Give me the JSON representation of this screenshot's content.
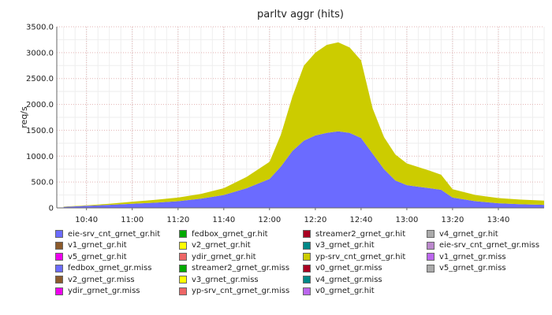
{
  "chart_data": {
    "type": "area",
    "title": "parltv aggr (hits)",
    "xlabel": "",
    "ylabel": "req/s",
    "x_ticks": [
      "10:40",
      "11:00",
      "11:20",
      "11:40",
      "12:00",
      "12:20",
      "12:40",
      "13:00",
      "13:20",
      "13:40"
    ],
    "y_ticks": [
      "0",
      "500.0",
      "1000.0",
      "1500.0",
      "2000.0",
      "2500.0",
      "3000.0",
      "3500.0"
    ],
    "ylim": [
      0,
      3500
    ],
    "xlim": [
      "10:27",
      "14:00"
    ],
    "grid": true,
    "legend_position": "bottom",
    "stacked": true,
    "x": [
      "10:30",
      "10:40",
      "10:50",
      "11:00",
      "11:10",
      "11:20",
      "11:30",
      "11:40",
      "11:50",
      "12:00",
      "12:05",
      "12:10",
      "12:15",
      "12:20",
      "12:25",
      "12:30",
      "12:35",
      "12:40",
      "12:45",
      "12:50",
      "12:55",
      "13:00",
      "13:05",
      "13:10",
      "13:15",
      "13:20",
      "13:30",
      "13:40",
      "13:50",
      "14:00"
    ],
    "series": [
      {
        "name": "fedbox_grnet_gr.miss",
        "color": "#6b6bff",
        "values": [
          20,
          40,
          60,
          80,
          100,
          130,
          180,
          250,
          380,
          560,
          800,
          1100,
          1300,
          1400,
          1450,
          1480,
          1450,
          1350,
          1050,
          750,
          530,
          440,
          410,
          380,
          350,
          200,
          130,
          90,
          70,
          60
        ]
      },
      {
        "name": "yp-srv_cnt_grnet_gr.hit",
        "color": "#cccc00",
        "values": [
          5,
          10,
          20,
          40,
          55,
          70,
          90,
          130,
          220,
          330,
          620,
          1050,
          1450,
          1600,
          1700,
          1720,
          1650,
          1500,
          880,
          620,
          500,
          420,
          380,
          340,
          290,
          160,
          120,
          100,
          90,
          80
        ]
      }
    ],
    "legend": [
      {
        "name": "eie-srv_cnt_grnet_gr.hit",
        "color": "#6b6bff"
      },
      {
        "name": "v1_grnet_gr.hit",
        "color": "#8b5a2b"
      },
      {
        "name": "v5_grnet_gr.hit",
        "color": "#ee00ee"
      },
      {
        "name": "fedbox_grnet_gr.miss",
        "color": "#6b6bff"
      },
      {
        "name": "v2_grnet_gr.miss",
        "color": "#8b5a2b"
      },
      {
        "name": "ydir_grnet_gr.miss",
        "color": "#ee00ee"
      },
      {
        "name": "fedbox_grnet_gr.hit",
        "color": "#00aa00"
      },
      {
        "name": "v2_grnet_gr.hit",
        "color": "#ffff00"
      },
      {
        "name": "ydir_grnet_gr.hit",
        "color": "#ee6666"
      },
      {
        "name": "streamer2_grnet_gr.miss",
        "color": "#00aa00"
      },
      {
        "name": "v3_grnet_gr.miss",
        "color": "#ffff00"
      },
      {
        "name": "yp-srv_cnt_grnet_gr.miss",
        "color": "#ee6666"
      },
      {
        "name": "streamer2_grnet_gr.hit",
        "color": "#aa0022"
      },
      {
        "name": "v3_grnet_gr.hit",
        "color": "#008888"
      },
      {
        "name": "yp-srv_cnt_grnet_gr.hit",
        "color": "#cccc00"
      },
      {
        "name": "v0_grnet_gr.miss",
        "color": "#aa0022"
      },
      {
        "name": "v4_grnet_gr.miss",
        "color": "#008888"
      },
      {
        "name": "v0_grnet_gr.hit",
        "color": "#bb66ee"
      },
      {
        "name": "v4_grnet_gr.hit",
        "color": "#aaaaaa"
      },
      {
        "name": "eie-srv_cnt_grnet_gr.miss",
        "color": "#bb88cc"
      },
      {
        "name": "v1_grnet_gr.miss",
        "color": "#bb66ee"
      },
      {
        "name": "v5_grnet_gr.miss",
        "color": "#aaaaaa"
      }
    ]
  }
}
